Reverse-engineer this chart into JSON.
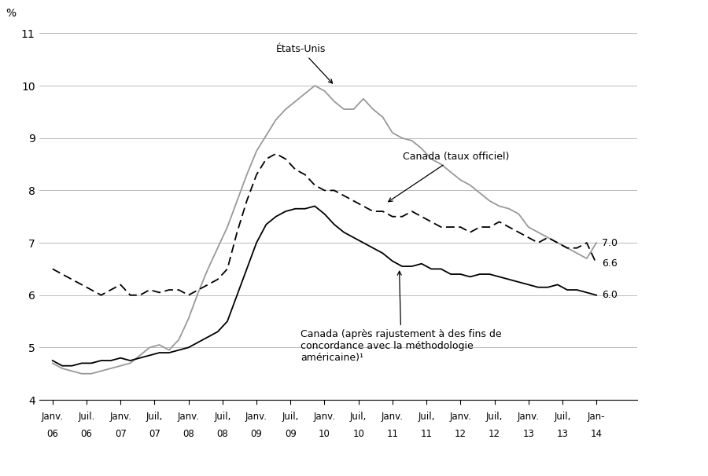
{
  "ylabel": "%",
  "ylim": [
    4,
    11
  ],
  "yticks": [
    4,
    5,
    6,
    7,
    8,
    9,
    10,
    11
  ],
  "background_color": "#ffffff",
  "grid_color": "#bbbbbb",
  "end_labels": {
    "usa": "7.0",
    "canada_official": "6.6",
    "canada_adjusted": "6.0"
  },
  "x_tick_labels_row1": [
    "Janv.",
    "Juil.",
    "Janv.",
    "Juil,",
    "Janv.",
    "Juil,",
    "Janv.",
    "Juil,",
    "Janv.",
    "Juil,",
    "Janv.",
    "Juil,",
    "Janv.",
    "Juil,",
    "Janv.",
    "Juil,",
    "Jan-"
  ],
  "x_tick_labels_row2": [
    "06",
    "06",
    "07",
    "07",
    "08",
    "08",
    "09",
    "09",
    "10",
    "10",
    "11",
    "11",
    "12",
    "12",
    "13",
    "13",
    "14"
  ],
  "usa_data": [
    4.7,
    4.6,
    4.55,
    4.5,
    4.5,
    4.55,
    4.6,
    4.65,
    4.7,
    4.85,
    5.0,
    5.05,
    4.95,
    5.15,
    5.55,
    6.05,
    6.5,
    6.9,
    7.3,
    7.8,
    8.3,
    8.75,
    9.05,
    9.35,
    9.55,
    9.7,
    9.85,
    10.0,
    9.9,
    9.7,
    9.55,
    9.55,
    9.75,
    9.55,
    9.4,
    9.1,
    9.0,
    8.95,
    8.8,
    8.6,
    8.5,
    8.35,
    8.2,
    8.1,
    7.95,
    7.8,
    7.7,
    7.65,
    7.55,
    7.3,
    7.2,
    7.1,
    7.0,
    6.9,
    6.8,
    6.7,
    7.0
  ],
  "canada_official_data": [
    6.5,
    6.4,
    6.3,
    6.2,
    6.1,
    6.0,
    6.1,
    6.2,
    6.0,
    6.0,
    6.1,
    6.05,
    6.1,
    6.1,
    6.0,
    6.1,
    6.2,
    6.3,
    6.5,
    7.2,
    7.8,
    8.3,
    8.6,
    8.7,
    8.6,
    8.4,
    8.3,
    8.1,
    8.0,
    8.0,
    7.9,
    7.8,
    7.7,
    7.6,
    7.6,
    7.5,
    7.5,
    7.6,
    7.5,
    7.4,
    7.3,
    7.3,
    7.3,
    7.2,
    7.3,
    7.3,
    7.4,
    7.3,
    7.2,
    7.1,
    7.0,
    7.1,
    7.0,
    6.9,
    6.9,
    7.0,
    6.6
  ],
  "canada_adjusted_data": [
    4.75,
    4.65,
    4.65,
    4.7,
    4.7,
    4.75,
    4.75,
    4.8,
    4.75,
    4.8,
    4.85,
    4.9,
    4.9,
    4.95,
    5.0,
    5.1,
    5.2,
    5.3,
    5.5,
    6.0,
    6.5,
    7.0,
    7.35,
    7.5,
    7.6,
    7.65,
    7.65,
    7.7,
    7.55,
    7.35,
    7.2,
    7.1,
    7.0,
    6.9,
    6.8,
    6.65,
    6.55,
    6.55,
    6.6,
    6.5,
    6.5,
    6.4,
    6.4,
    6.35,
    6.4,
    6.4,
    6.35,
    6.3,
    6.25,
    6.2,
    6.15,
    6.15,
    6.2,
    6.1,
    6.1,
    6.05,
    6.0
  ]
}
